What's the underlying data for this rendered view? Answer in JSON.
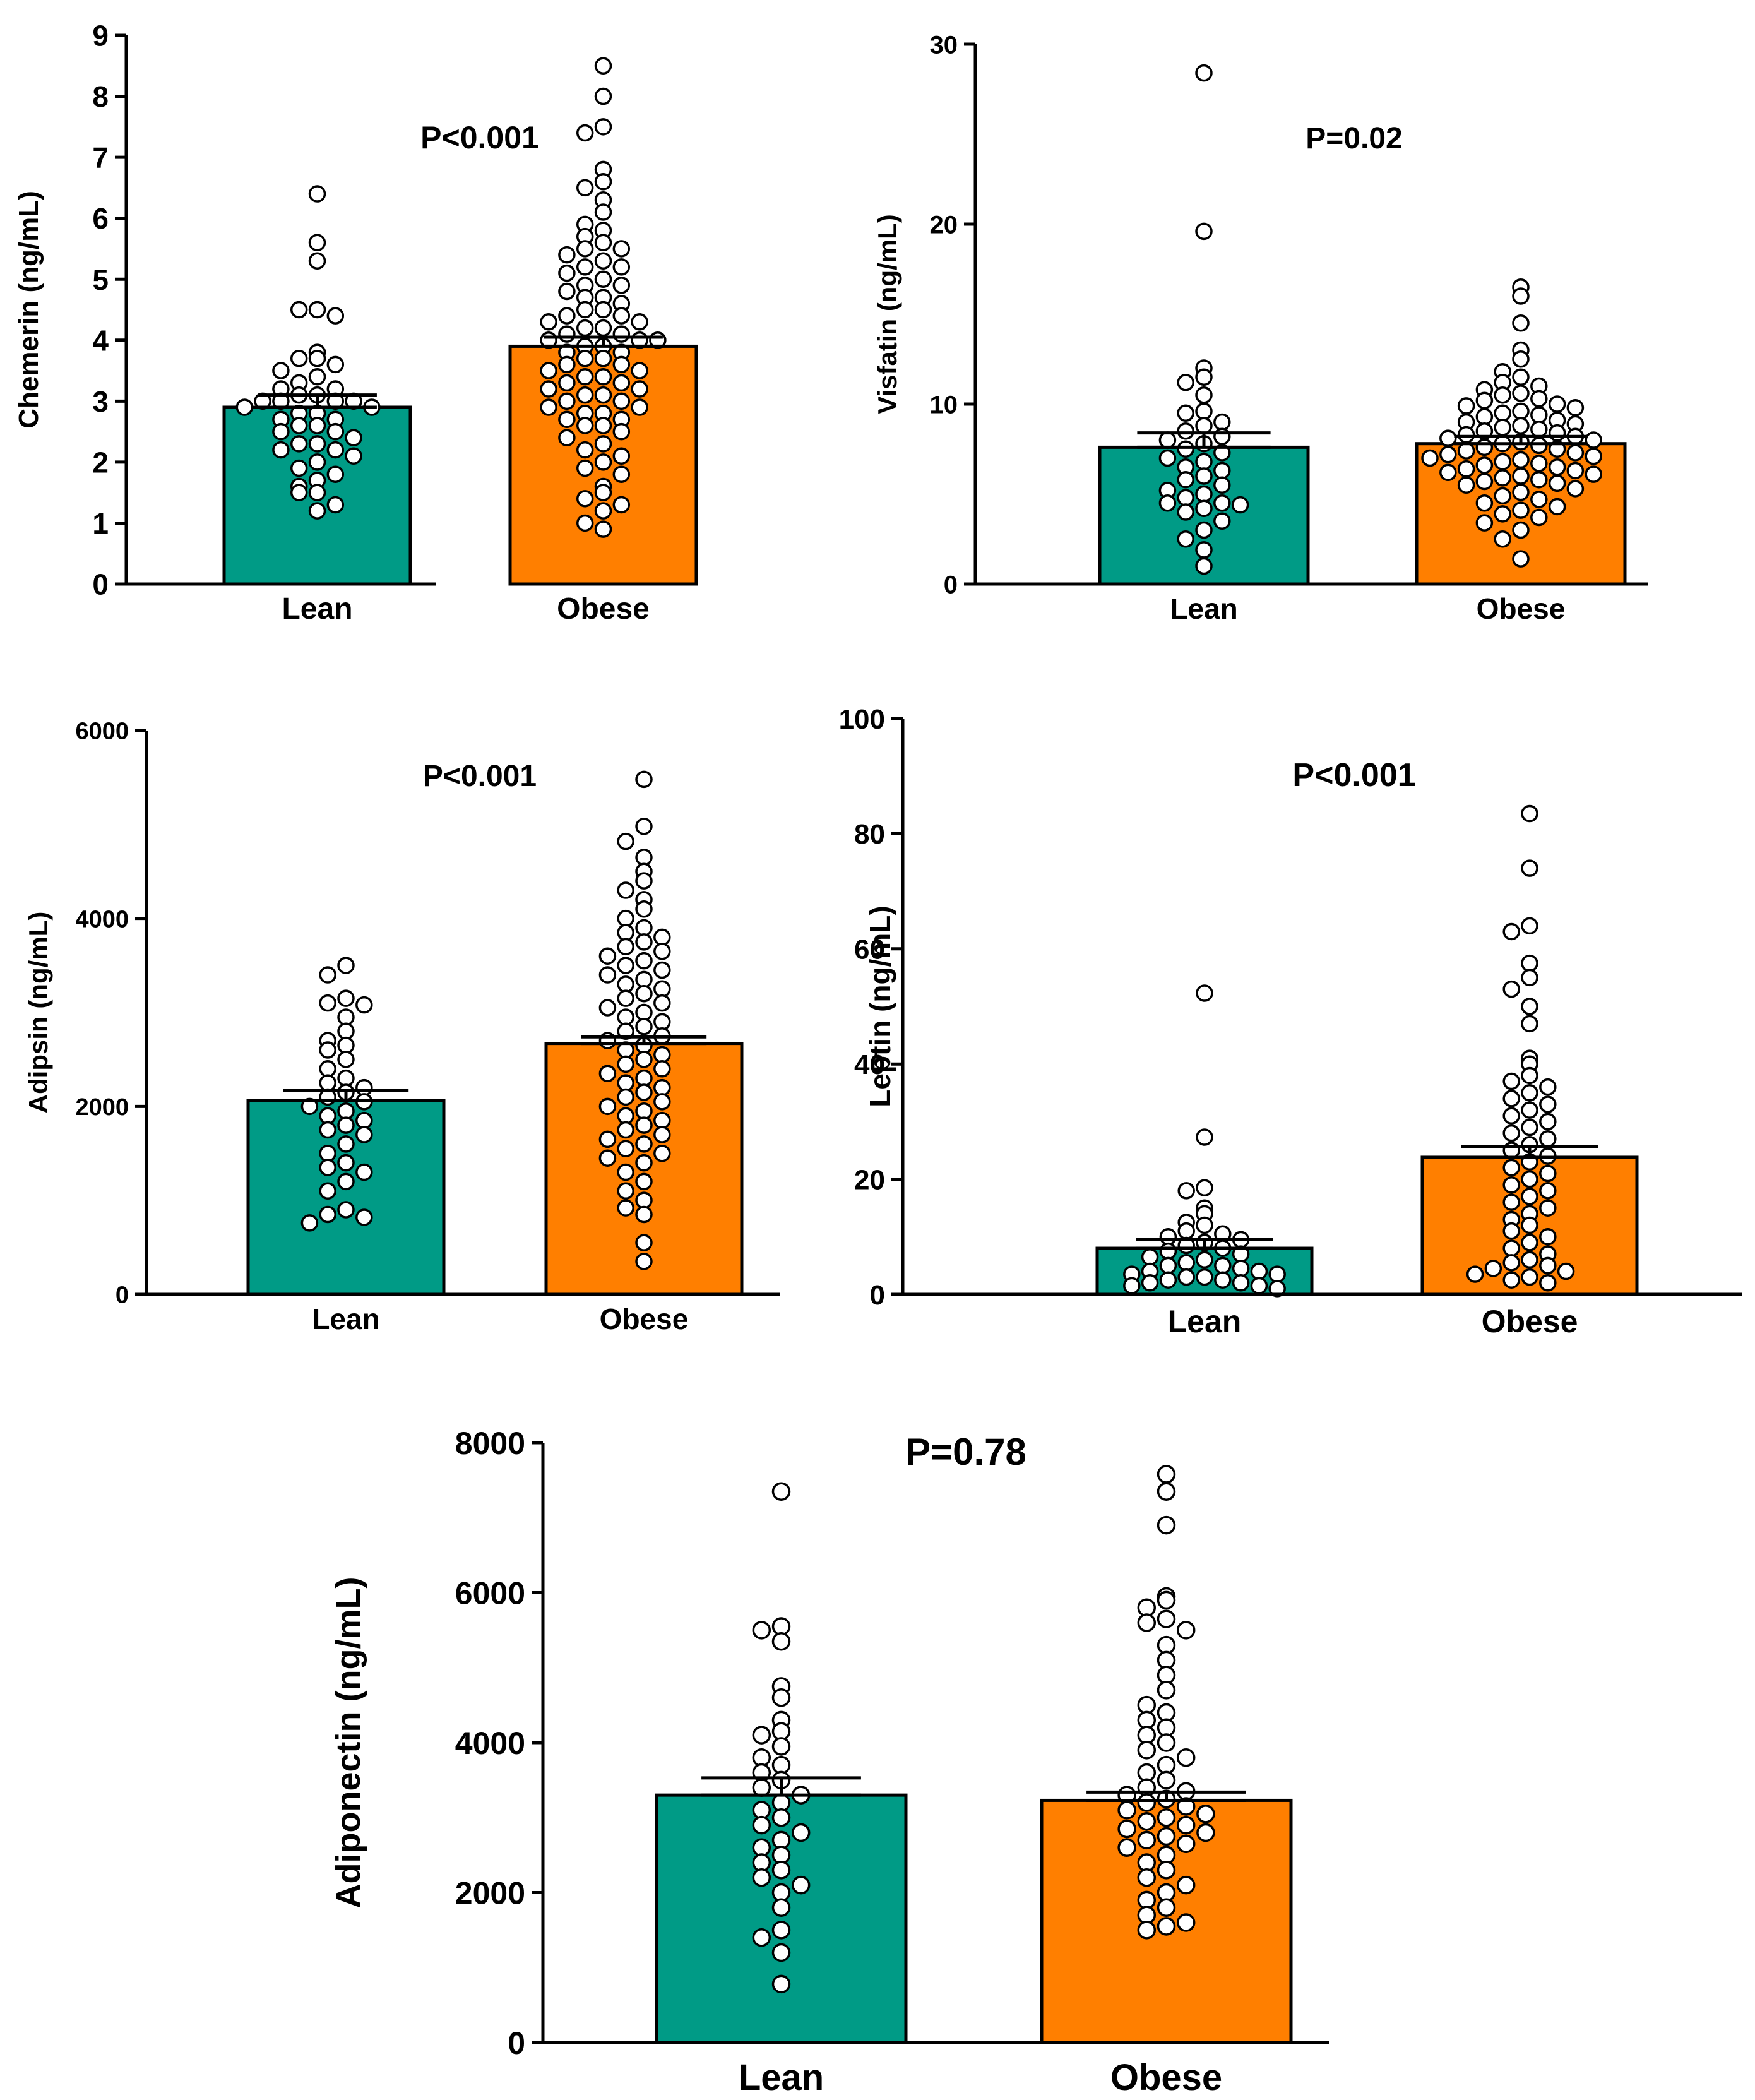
{
  "figure": {
    "description_free": true
  },
  "chart_data": [
    {
      "id": "chemerin",
      "type": "bar",
      "title": "",
      "ylabel": "Chemerin  (ng/mL)",
      "xlabel": "",
      "categories": [
        "Lean",
        "Obese"
      ],
      "values": [
        2.9,
        3.9
      ],
      "sem": [
        0.2,
        0.15
      ],
      "ylim": [
        0,
        9
      ],
      "yticks": [
        "0",
        "1",
        "2",
        "3",
        "4",
        "5",
        "6",
        "7",
        "8",
        "9"
      ],
      "annotation": "P<0.001",
      "points": [
        [
          6.4,
          5.6,
          5.3,
          4.5,
          4.5,
          4.4,
          3.8,
          3.7,
          3.7,
          3.6,
          3.5,
          3.4,
          3.3,
          3.2,
          3.2,
          3.1,
          3.1,
          3.0,
          3.0,
          3.0,
          3.0,
          2.9,
          2.9,
          2.8,
          2.8,
          2.7,
          2.7,
          2.6,
          2.6,
          2.5,
          2.5,
          2.4,
          2.3,
          2.3,
          2.2,
          2.2,
          2.1,
          2.0,
          1.9,
          1.8,
          1.7,
          1.6,
          1.5,
          1.5,
          1.3,
          1.2
        ],
        [
          8.5,
          8.0,
          7.5,
          7.4,
          6.8,
          6.6,
          6.5,
          6.3,
          6.1,
          5.9,
          5.8,
          5.7,
          5.6,
          5.5,
          5.5,
          5.4,
          5.3,
          5.2,
          5.2,
          5.1,
          5.0,
          4.9,
          4.9,
          4.8,
          4.7,
          4.7,
          4.6,
          4.5,
          4.5,
          4.4,
          4.4,
          4.3,
          4.3,
          4.2,
          4.2,
          4.1,
          4.1,
          4.0,
          4.0,
          4.0,
          3.9,
          3.9,
          3.8,
          3.8,
          3.7,
          3.7,
          3.6,
          3.6,
          3.5,
          3.5,
          3.4,
          3.4,
          3.3,
          3.3,
          3.2,
          3.2,
          3.1,
          3.1,
          3.0,
          3.0,
          2.9,
          2.9,
          2.8,
          2.8,
          2.7,
          2.7,
          2.6,
          2.6,
          2.5,
          2.4,
          2.3,
          2.2,
          2.1,
          2.0,
          1.9,
          1.8,
          1.6,
          1.5,
          1.4,
          1.3,
          1.2,
          1.0,
          0.9
        ]
      ]
    },
    {
      "id": "visfatin",
      "type": "bar",
      "title": "",
      "ylabel": "Visfatin (ng/mL)",
      "xlabel": "",
      "categories": [
        "Lean",
        "Obese"
      ],
      "values": [
        7.6,
        7.8
      ],
      "sem": [
        0.8,
        0.4
      ],
      "ylim": [
        0,
        30
      ],
      "yticks": [
        "0",
        "10",
        "20",
        "30"
      ],
      "annotation": "P=0.02",
      "points": [
        [
          28.4,
          19.6,
          12.0,
          11.5,
          11.2,
          10.5,
          9.6,
          9.5,
          9.0,
          8.8,
          8.5,
          8.2,
          8.0,
          7.8,
          7.5,
          7.3,
          7.0,
          6.8,
          6.5,
          6.3,
          6.0,
          5.8,
          5.5,
          5.2,
          5.0,
          4.8,
          4.5,
          4.5,
          4.4,
          4.2,
          4.0,
          3.5,
          3.0,
          2.5,
          1.9,
          1.0
        ],
        [
          16.5,
          16.0,
          14.5,
          13.0,
          12.5,
          11.8,
          11.5,
          11.2,
          11.0,
          10.8,
          10.6,
          10.5,
          10.3,
          10.2,
          10.0,
          9.9,
          9.8,
          9.6,
          9.5,
          9.4,
          9.3,
          9.1,
          9.0,
          8.9,
          8.8,
          8.7,
          8.6,
          8.5,
          8.4,
          8.3,
          8.2,
          8.1,
          8.0,
          7.9,
          7.8,
          7.7,
          7.6,
          7.5,
          7.4,
          7.3,
          7.2,
          7.1,
          7.0,
          6.9,
          6.8,
          6.7,
          6.6,
          6.5,
          6.4,
          6.3,
          6.2,
          6.1,
          6.0,
          5.9,
          5.8,
          5.7,
          5.6,
          5.5,
          5.3,
          5.1,
          4.9,
          4.7,
          4.5,
          4.3,
          4.1,
          3.9,
          3.7,
          3.4,
          3.0,
          2.5,
          1.4
        ]
      ]
    },
    {
      "id": "adipsin",
      "type": "bar",
      "title": "",
      "ylabel": "Adipsin (ng/mL)",
      "xlabel": "",
      "categories": [
        "Lean",
        "Obese"
      ],
      "values": [
        2060,
        2670
      ],
      "sem": [
        110,
        70
      ],
      "ylim": [
        0,
        6000
      ],
      "yticks": [
        "0",
        "2000",
        "4000",
        "6000"
      ],
      "annotation": "P<0.001",
      "points": [
        [
          3500,
          3400,
          3150,
          3100,
          3080,
          2950,
          2800,
          2700,
          2650,
          2600,
          2500,
          2400,
          2300,
          2250,
          2200,
          2150,
          2100,
          2050,
          2000,
          1950,
          1900,
          1850,
          1800,
          1750,
          1700,
          1600,
          1500,
          1400,
          1350,
          1300,
          1200,
          1100,
          900,
          850,
          820,
          760
        ],
        [
          5480,
          4980,
          4820,
          4650,
          4500,
          4400,
          4300,
          4200,
          4100,
          4000,
          3900,
          3850,
          3800,
          3750,
          3700,
          3650,
          3600,
          3550,
          3500,
          3450,
          3400,
          3350,
          3300,
          3250,
          3200,
          3150,
          3100,
          3050,
          3000,
          2950,
          2900,
          2850,
          2800,
          2750,
          2700,
          2650,
          2600,
          2550,
          2500,
          2450,
          2400,
          2350,
          2300,
          2250,
          2200,
          2150,
          2100,
          2050,
          2000,
          1950,
          1900,
          1850,
          1800,
          1750,
          1700,
          1650,
          1600,
          1550,
          1500,
          1450,
          1400,
          1300,
          1200,
          1100,
          1000,
          920,
          850,
          550,
          350
        ]
      ]
    },
    {
      "id": "leptin",
      "type": "bar",
      "title": "",
      "ylabel": "Leptin (ng/mL)",
      "xlabel": "",
      "categories": [
        "Lean",
        "Obese"
      ],
      "values": [
        8.0,
        23.8
      ],
      "sem": [
        1.5,
        1.8
      ],
      "ylim": [
        0,
        100
      ],
      "yticks": [
        "0",
        "20",
        "40",
        "60",
        "80",
        "100"
      ],
      "annotation": "P<0.001",
      "points": [
        [
          52.3,
          27.3,
          18.5,
          18.0,
          15.0,
          14.0,
          12.5,
          12.0,
          11.0,
          10.5,
          10.0,
          9.5,
          9.0,
          8.5,
          8.0,
          7.5,
          7.0,
          6.5,
          6.0,
          5.5,
          5.0,
          5.0,
          4.5,
          4.0,
          4.0,
          3.5,
          3.5,
          3.0,
          3.0,
          2.5,
          2.5,
          2.0,
          2.0,
          1.5,
          1.5,
          1.0
        ],
        [
          83.5,
          74.0,
          64.0,
          63.0,
          57.5,
          55.0,
          53.0,
          50.0,
          47.0,
          41.0,
          40.0,
          38.0,
          37.0,
          36.0,
          35.0,
          34.0,
          33.0,
          32.0,
          31.0,
          30.0,
          29.0,
          28.0,
          27.0,
          26.0,
          25.0,
          24.0,
          23.0,
          22.0,
          21.0,
          20.0,
          19.0,
          18.0,
          17.0,
          16.0,
          15.0,
          14.0,
          13.0,
          12.0,
          11.0,
          10.0,
          9.0,
          8.0,
          7.0,
          6.0,
          5.5,
          5.0,
          4.5,
          4.0,
          3.5,
          3.0,
          2.5,
          2.0
        ]
      ]
    },
    {
      "id": "adiponectin",
      "type": "bar",
      "title": "",
      "ylabel": "Adiponectin (ng/mL)",
      "xlabel": "",
      "categories": [
        "Lean",
        "Obese"
      ],
      "values": [
        3300,
        3230
      ],
      "sem": [
        230,
        110
      ],
      "ylim": [
        0,
        8000
      ],
      "yticks": [
        "0",
        "2000",
        "4000",
        "6000",
        "8000"
      ],
      "annotation": "P=0.78",
      "points": [
        [
          7350,
          5550,
          5500,
          5350,
          4750,
          4600,
          4300,
          4150,
          4100,
          3950,
          3800,
          3700,
          3600,
          3500,
          3400,
          3300,
          3200,
          3100,
          3000,
          2900,
          2800,
          2700,
          2600,
          2500,
          2400,
          2300,
          2200,
          2100,
          2000,
          1800,
          1500,
          1400,
          1200,
          780
        ],
        [
          7580,
          7350,
          6900,
          5950,
          5900,
          5800,
          5650,
          5600,
          5500,
          5300,
          5100,
          4900,
          4700,
          4500,
          4400,
          4300,
          4200,
          4100,
          4000,
          3900,
          3800,
          3700,
          3600,
          3500,
          3400,
          3350,
          3300,
          3250,
          3200,
          3150,
          3100,
          3050,
          3000,
          2950,
          2900,
          2850,
          2800,
          2750,
          2700,
          2650,
          2600,
          2500,
          2400,
          2300,
          2200,
          2100,
          2000,
          1900,
          1800,
          1700,
          1600,
          1550,
          1500
        ]
      ]
    }
  ]
}
